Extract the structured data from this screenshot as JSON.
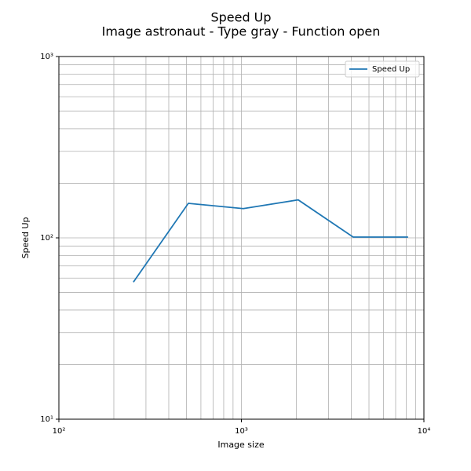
{
  "chart_data": {
    "type": "line",
    "title": "Speed Up",
    "subtitle": "Image astronaut - Type gray - Function open",
    "x_label": "Image size",
    "y_label": "Speed Up",
    "x": [
      256,
      512,
      1024,
      2048,
      4096,
      8192
    ],
    "series": [
      {
        "name": "Speed Up",
        "color": "#1f77b4",
        "values": [
          57,
          155,
          145,
          162,
          101,
          101
        ]
      }
    ],
    "xscale": "log",
    "yscale": "log",
    "xlim": [
      100,
      10000
    ],
    "ylim": [
      10,
      1000
    ],
    "xticks": [
      {
        "value": 100,
        "label": "10²"
      },
      {
        "value": 1000,
        "label": "10³"
      },
      {
        "value": 10000,
        "label": "10⁴"
      }
    ],
    "yticks": [
      {
        "value": 10,
        "label": "10¹"
      },
      {
        "value": 100,
        "label": "10²"
      },
      {
        "value": 1000,
        "label": "10³"
      }
    ],
    "grid": true,
    "minor_grid": true,
    "legend": "upper right"
  }
}
